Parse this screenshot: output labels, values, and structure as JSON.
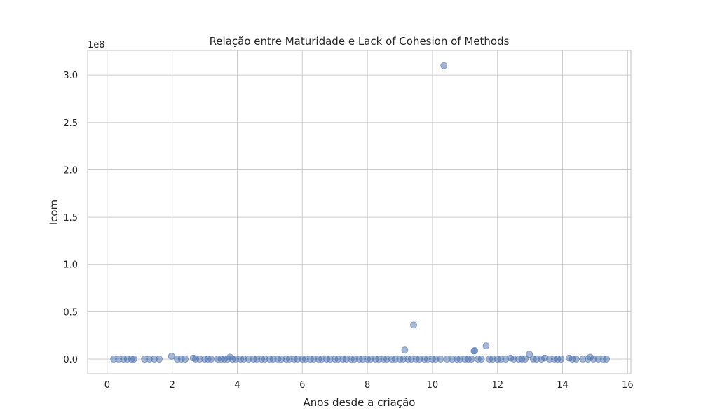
{
  "chart_data": {
    "type": "scatter",
    "title": "Relação entre Maturidade e Lack of Cohesion of Methods",
    "xlabel": "Anos desde a criação",
    "ylabel": "lcom",
    "offset_text": "1e8",
    "xlim": [
      -0.6,
      16.1
    ],
    "ylim": [
      -0.155,
      3.26
    ],
    "x_ticks": [
      0,
      2,
      4,
      6,
      8,
      10,
      12,
      14,
      16
    ],
    "y_ticks": [
      0.0,
      0.5,
      1.0,
      1.5,
      2.0,
      2.5,
      3.0
    ],
    "y_tick_labels": [
      "0.0",
      "0.5",
      "1.0",
      "1.5",
      "2.0",
      "2.5",
      "3.0"
    ],
    "grid": true,
    "marker_color": "#4c72b0",
    "marker_alpha": 0.5,
    "y_units_note": "values in units of 1e8",
    "series": [
      {
        "name": "",
        "points": [
          [
            10.35,
            3.1
          ],
          [
            9.42,
            0.36
          ],
          [
            9.15,
            0.095
          ],
          [
            11.65,
            0.14
          ],
          [
            11.28,
            0.085
          ],
          [
            11.3,
            0.09
          ],
          [
            12.98,
            0.05
          ],
          [
            1.98,
            0.03
          ],
          [
            3.78,
            0.02
          ],
          [
            14.85,
            0.02
          ],
          [
            0.2,
            0
          ],
          [
            0.35,
            0
          ],
          [
            0.5,
            0
          ],
          [
            0.62,
            0
          ],
          [
            0.75,
            0
          ],
          [
            0.82,
            0
          ],
          [
            1.15,
            0
          ],
          [
            1.3,
            0
          ],
          [
            1.45,
            0
          ],
          [
            1.6,
            0
          ],
          [
            2.15,
            0
          ],
          [
            2.28,
            0
          ],
          [
            2.4,
            0
          ],
          [
            2.65,
            0.01
          ],
          [
            2.72,
            0
          ],
          [
            2.85,
            0
          ],
          [
            3.0,
            0
          ],
          [
            3.1,
            0
          ],
          [
            3.2,
            0
          ],
          [
            3.4,
            0
          ],
          [
            3.5,
            0
          ],
          [
            3.6,
            0
          ],
          [
            3.7,
            0
          ],
          [
            3.85,
            0
          ],
          [
            3.95,
            0
          ],
          [
            4.1,
            0
          ],
          [
            4.2,
            0
          ],
          [
            4.35,
            0
          ],
          [
            4.5,
            0
          ],
          [
            4.6,
            0
          ],
          [
            4.75,
            0
          ],
          [
            4.85,
            0
          ],
          [
            5.0,
            0
          ],
          [
            5.1,
            0
          ],
          [
            5.25,
            0
          ],
          [
            5.35,
            0
          ],
          [
            5.5,
            0
          ],
          [
            5.6,
            0
          ],
          [
            5.75,
            0
          ],
          [
            5.85,
            0
          ],
          [
            6.0,
            0
          ],
          [
            6.1,
            0
          ],
          [
            6.25,
            0
          ],
          [
            6.35,
            0
          ],
          [
            6.5,
            0
          ],
          [
            6.6,
            0
          ],
          [
            6.75,
            0
          ],
          [
            6.85,
            0
          ],
          [
            7.0,
            0
          ],
          [
            7.1,
            0
          ],
          [
            7.25,
            0
          ],
          [
            7.35,
            0
          ],
          [
            7.5,
            0
          ],
          [
            7.6,
            0
          ],
          [
            7.75,
            0
          ],
          [
            7.85,
            0
          ],
          [
            8.0,
            0
          ],
          [
            8.1,
            0
          ],
          [
            8.25,
            0
          ],
          [
            8.35,
            0
          ],
          [
            8.5,
            0
          ],
          [
            8.6,
            0
          ],
          [
            8.75,
            0
          ],
          [
            8.85,
            0
          ],
          [
            9.0,
            0
          ],
          [
            9.1,
            0
          ],
          [
            9.25,
            0
          ],
          [
            9.35,
            0
          ],
          [
            9.5,
            0
          ],
          [
            9.6,
            0
          ],
          [
            9.75,
            0
          ],
          [
            9.85,
            0
          ],
          [
            10.0,
            0
          ],
          [
            10.1,
            0
          ],
          [
            10.25,
            0
          ],
          [
            10.45,
            0
          ],
          [
            10.6,
            0
          ],
          [
            10.75,
            0
          ],
          [
            10.85,
            0
          ],
          [
            11.0,
            0
          ],
          [
            11.1,
            0
          ],
          [
            11.2,
            0
          ],
          [
            11.4,
            0
          ],
          [
            11.5,
            0
          ],
          [
            11.75,
            0
          ],
          [
            11.85,
            0
          ],
          [
            12.0,
            0
          ],
          [
            12.1,
            0
          ],
          [
            12.25,
            0
          ],
          [
            12.4,
            0.01
          ],
          [
            12.5,
            0
          ],
          [
            12.65,
            0
          ],
          [
            12.75,
            0
          ],
          [
            12.85,
            0
          ],
          [
            13.1,
            0
          ],
          [
            13.2,
            0
          ],
          [
            13.35,
            0
          ],
          [
            13.45,
            0.01
          ],
          [
            13.6,
            0
          ],
          [
            13.75,
            0
          ],
          [
            13.85,
            0
          ],
          [
            13.95,
            0
          ],
          [
            14.2,
            0.01
          ],
          [
            14.3,
            0
          ],
          [
            14.42,
            0
          ],
          [
            14.62,
            0
          ],
          [
            14.78,
            0
          ],
          [
            14.95,
            0
          ],
          [
            15.1,
            0
          ],
          [
            15.25,
            0
          ],
          [
            15.35,
            0
          ]
        ]
      }
    ]
  }
}
